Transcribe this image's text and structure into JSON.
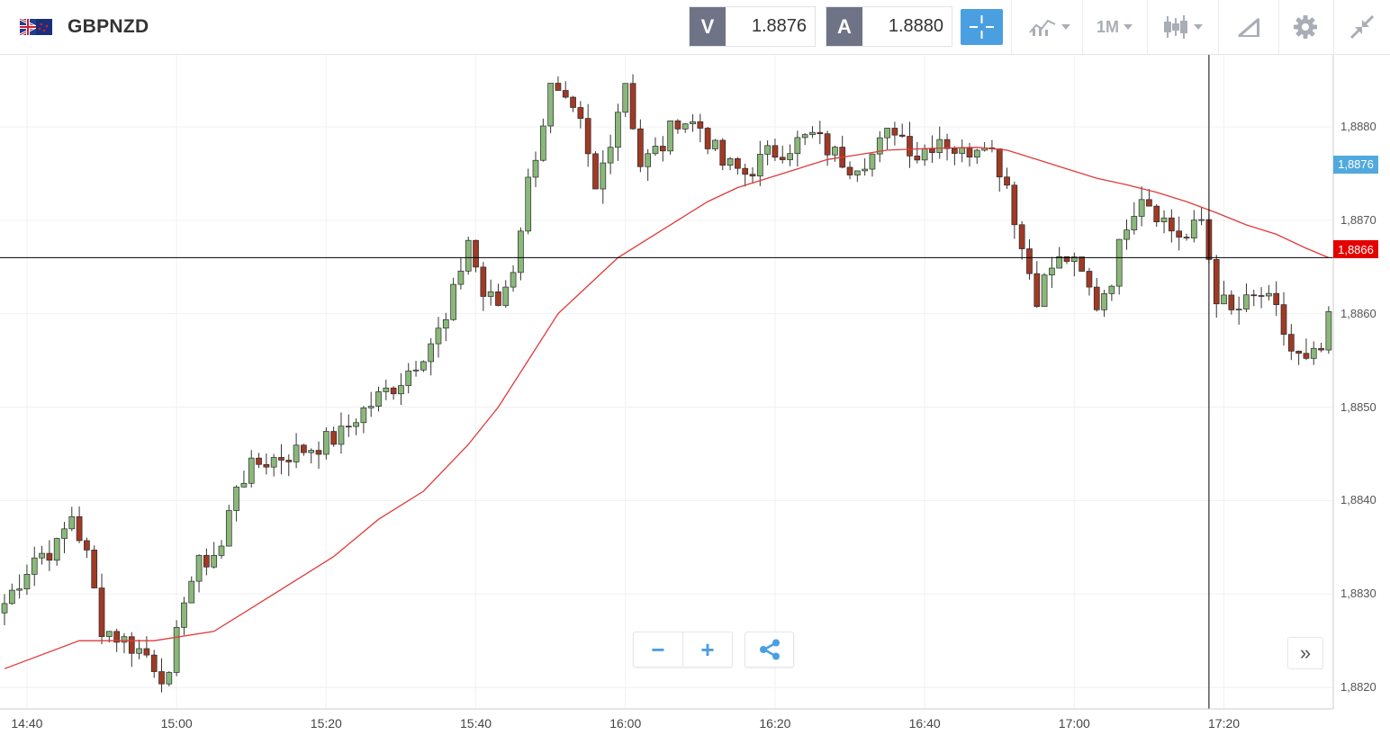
{
  "header": {
    "symbol": "GBPNZD",
    "bid_label": "V",
    "bid_value": "1.8876",
    "ask_label": "A",
    "ask_value": "1.8880",
    "timeframe": "1M"
  },
  "icons": {
    "flag": "uk-nz-flag-icon",
    "crosshair": "crosshair-icon",
    "indicators": "indicators-icon",
    "chart_type": "candlestick-icon",
    "drawing": "drawing-tool-icon",
    "settings": "gear-icon",
    "collapse": "collapse-arrows-icon",
    "share": "share-icon"
  },
  "colors": {
    "bull": "#8ab87a",
    "bear": "#a03a25",
    "ma_line": "#e03a3a",
    "accent": "#4a9fe0",
    "last_price_badge": "#52a9de",
    "cursor_price_badge": "#e50000"
  },
  "controls": {
    "zoom_out": "−",
    "zoom_in": "+",
    "scroll_end": "»"
  },
  "chart_data": {
    "type": "candlestick",
    "timeframe": "1M",
    "last_price": "1,8876",
    "cursor_price": "1,8866",
    "cursor_time_index": 161,
    "y_ticks": [
      "1,8880",
      "1,8870",
      "1,8860",
      "1,8850",
      "1,8840",
      "1,8830",
      "1,8820"
    ],
    "y_tick_values": [
      1.888,
      1.887,
      1.886,
      1.885,
      1.884,
      1.883,
      1.882
    ],
    "ylim": [
      1.88177,
      1.88877
    ],
    "x_ticks": [
      "14:40",
      "15:00",
      "15:20",
      "15:40",
      "16:00",
      "16:20",
      "16:40",
      "17:00",
      "17:20"
    ],
    "x_tick_index": [
      3,
      23,
      43,
      63,
      83,
      103,
      123,
      143,
      163
    ],
    "candle_count": 178,
    "ma_series": [
      [
        0,
        1.8822
      ],
      [
        10,
        1.8825
      ],
      [
        20,
        1.8825
      ],
      [
        28,
        1.8826
      ],
      [
        36,
        1.883
      ],
      [
        44,
        1.8834
      ],
      [
        50,
        1.8838
      ],
      [
        56,
        1.8841
      ],
      [
        62,
        1.8846
      ],
      [
        66,
        1.885
      ],
      [
        70,
        1.8855
      ],
      [
        74,
        1.886
      ],
      [
        78,
        1.8863
      ],
      [
        82,
        1.8866
      ],
      [
        86,
        1.8868
      ],
      [
        90,
        1.887
      ],
      [
        94,
        1.8872
      ],
      [
        98,
        1.88735
      ],
      [
        102,
        1.88745
      ],
      [
        106,
        1.88755
      ],
      [
        110,
        1.88765
      ],
      [
        114,
        1.8877
      ],
      [
        118,
        1.88775
      ],
      [
        124,
        1.88777
      ],
      [
        130,
        1.88778
      ],
      [
        134,
        1.88775
      ],
      [
        138,
        1.88765
      ],
      [
        142,
        1.88755
      ],
      [
        146,
        1.88745
      ],
      [
        150,
        1.88738
      ],
      [
        154,
        1.8873
      ],
      [
        158,
        1.8872
      ],
      [
        162,
        1.88708
      ],
      [
        166,
        1.88695
      ],
      [
        170,
        1.88685
      ],
      [
        174,
        1.8867
      ],
      [
        177,
        1.8866
      ]
    ],
    "anchors": [
      [
        0,
        1.8829
      ],
      [
        4,
        1.8834
      ],
      [
        7,
        1.8835
      ],
      [
        9,
        1.88385
      ],
      [
        11,
        1.8834
      ],
      [
        13,
        1.88265
      ],
      [
        16,
        1.8825
      ],
      [
        19,
        1.88235
      ],
      [
        22,
        1.88205
      ],
      [
        24,
        1.883
      ],
      [
        26,
        1.8833
      ],
      [
        29,
        1.8835
      ],
      [
        31,
        1.8842
      ],
      [
        34,
        1.8844
      ],
      [
        38,
        1.8845
      ],
      [
        42,
        1.8846
      ],
      [
        45,
        1.8847
      ],
      [
        47,
        1.8849
      ],
      [
        50,
        1.8851
      ],
      [
        53,
        1.8853
      ],
      [
        56,
        1.8856
      ],
      [
        59,
        1.8859
      ],
      [
        62,
        1.8868
      ],
      [
        64,
        1.8862
      ],
      [
        66,
        1.8861
      ],
      [
        68,
        1.8865
      ],
      [
        70,
        1.8874
      ],
      [
        73,
        1.8884
      ],
      [
        77,
        1.888
      ],
      [
        79,
        1.8873
      ],
      [
        81,
        1.8879
      ],
      [
        83,
        1.8885
      ],
      [
        85,
        1.8876
      ],
      [
        88,
        1.8878
      ],
      [
        90,
        1.8881
      ],
      [
        93,
        1.888
      ],
      [
        96,
        1.8876
      ],
      [
        99,
        1.8875
      ],
      [
        102,
        1.8877
      ],
      [
        105,
        1.8878
      ],
      [
        108,
        1.8879
      ],
      [
        111,
        1.8877
      ],
      [
        113,
        1.8876
      ],
      [
        116,
        1.8877
      ],
      [
        119,
        1.888
      ],
      [
        122,
        1.8877
      ],
      [
        125,
        1.8879
      ],
      [
        128,
        1.8877
      ],
      [
        131,
        1.8879
      ],
      [
        134,
        1.8874
      ],
      [
        136,
        1.8867
      ],
      [
        138,
        1.8862
      ],
      [
        140,
        1.8865
      ],
      [
        142,
        1.8866
      ],
      [
        144,
        1.8864
      ],
      [
        146,
        1.8861
      ],
      [
        148,
        1.8864
      ],
      [
        150,
        1.887
      ],
      [
        152,
        1.8873
      ],
      [
        154,
        1.8871
      ],
      [
        156,
        1.8869
      ],
      [
        158,
        1.8868
      ],
      [
        160,
        1.887
      ],
      [
        162,
        1.8862
      ],
      [
        164,
        1.886
      ],
      [
        166,
        1.8861
      ],
      [
        168,
        1.8862
      ],
      [
        170,
        1.886
      ],
      [
        172,
        1.8856
      ],
      [
        174,
        1.88545
      ],
      [
        176,
        1.8856
      ],
      [
        177,
        1.8859
      ]
    ]
  }
}
